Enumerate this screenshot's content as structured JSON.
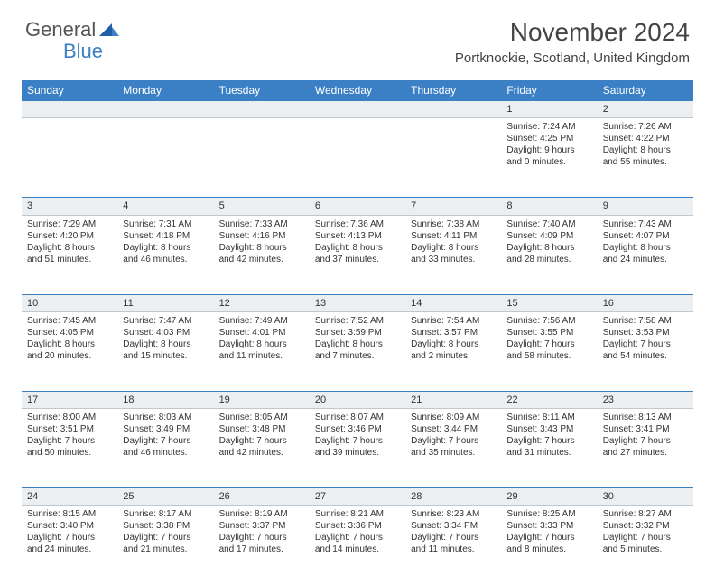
{
  "logo": {
    "general": "General",
    "blue": "Blue"
  },
  "title": "November 2024",
  "location": "Portknockie, Scotland, United Kingdom",
  "colors": {
    "header_bg": "#3b7fc4",
    "header_text": "#ffffff",
    "daynum_bg": "#eceff1",
    "border_top": "#3b7fc4",
    "body_text": "#333333"
  },
  "weekdays": [
    "Sunday",
    "Monday",
    "Tuesday",
    "Wednesday",
    "Thursday",
    "Friday",
    "Saturday"
  ],
  "weeks": [
    {
      "nums": [
        "",
        "",
        "",
        "",
        "",
        "1",
        "2"
      ],
      "cells": [
        null,
        null,
        null,
        null,
        null,
        {
          "sunrise": "Sunrise: 7:24 AM",
          "sunset": "Sunset: 4:25 PM",
          "day1": "Daylight: 9 hours",
          "day2": "and 0 minutes."
        },
        {
          "sunrise": "Sunrise: 7:26 AM",
          "sunset": "Sunset: 4:22 PM",
          "day1": "Daylight: 8 hours",
          "day2": "and 55 minutes."
        }
      ]
    },
    {
      "nums": [
        "3",
        "4",
        "5",
        "6",
        "7",
        "8",
        "9"
      ],
      "cells": [
        {
          "sunrise": "Sunrise: 7:29 AM",
          "sunset": "Sunset: 4:20 PM",
          "day1": "Daylight: 8 hours",
          "day2": "and 51 minutes."
        },
        {
          "sunrise": "Sunrise: 7:31 AM",
          "sunset": "Sunset: 4:18 PM",
          "day1": "Daylight: 8 hours",
          "day2": "and 46 minutes."
        },
        {
          "sunrise": "Sunrise: 7:33 AM",
          "sunset": "Sunset: 4:16 PM",
          "day1": "Daylight: 8 hours",
          "day2": "and 42 minutes."
        },
        {
          "sunrise": "Sunrise: 7:36 AM",
          "sunset": "Sunset: 4:13 PM",
          "day1": "Daylight: 8 hours",
          "day2": "and 37 minutes."
        },
        {
          "sunrise": "Sunrise: 7:38 AM",
          "sunset": "Sunset: 4:11 PM",
          "day1": "Daylight: 8 hours",
          "day2": "and 33 minutes."
        },
        {
          "sunrise": "Sunrise: 7:40 AM",
          "sunset": "Sunset: 4:09 PM",
          "day1": "Daylight: 8 hours",
          "day2": "and 28 minutes."
        },
        {
          "sunrise": "Sunrise: 7:43 AM",
          "sunset": "Sunset: 4:07 PM",
          "day1": "Daylight: 8 hours",
          "day2": "and 24 minutes."
        }
      ]
    },
    {
      "nums": [
        "10",
        "11",
        "12",
        "13",
        "14",
        "15",
        "16"
      ],
      "cells": [
        {
          "sunrise": "Sunrise: 7:45 AM",
          "sunset": "Sunset: 4:05 PM",
          "day1": "Daylight: 8 hours",
          "day2": "and 20 minutes."
        },
        {
          "sunrise": "Sunrise: 7:47 AM",
          "sunset": "Sunset: 4:03 PM",
          "day1": "Daylight: 8 hours",
          "day2": "and 15 minutes."
        },
        {
          "sunrise": "Sunrise: 7:49 AM",
          "sunset": "Sunset: 4:01 PM",
          "day1": "Daylight: 8 hours",
          "day2": "and 11 minutes."
        },
        {
          "sunrise": "Sunrise: 7:52 AM",
          "sunset": "Sunset: 3:59 PM",
          "day1": "Daylight: 8 hours",
          "day2": "and 7 minutes."
        },
        {
          "sunrise": "Sunrise: 7:54 AM",
          "sunset": "Sunset: 3:57 PM",
          "day1": "Daylight: 8 hours",
          "day2": "and 2 minutes."
        },
        {
          "sunrise": "Sunrise: 7:56 AM",
          "sunset": "Sunset: 3:55 PM",
          "day1": "Daylight: 7 hours",
          "day2": "and 58 minutes."
        },
        {
          "sunrise": "Sunrise: 7:58 AM",
          "sunset": "Sunset: 3:53 PM",
          "day1": "Daylight: 7 hours",
          "day2": "and 54 minutes."
        }
      ]
    },
    {
      "nums": [
        "17",
        "18",
        "19",
        "20",
        "21",
        "22",
        "23"
      ],
      "cells": [
        {
          "sunrise": "Sunrise: 8:00 AM",
          "sunset": "Sunset: 3:51 PM",
          "day1": "Daylight: 7 hours",
          "day2": "and 50 minutes."
        },
        {
          "sunrise": "Sunrise: 8:03 AM",
          "sunset": "Sunset: 3:49 PM",
          "day1": "Daylight: 7 hours",
          "day2": "and 46 minutes."
        },
        {
          "sunrise": "Sunrise: 8:05 AM",
          "sunset": "Sunset: 3:48 PM",
          "day1": "Daylight: 7 hours",
          "day2": "and 42 minutes."
        },
        {
          "sunrise": "Sunrise: 8:07 AM",
          "sunset": "Sunset: 3:46 PM",
          "day1": "Daylight: 7 hours",
          "day2": "and 39 minutes."
        },
        {
          "sunrise": "Sunrise: 8:09 AM",
          "sunset": "Sunset: 3:44 PM",
          "day1": "Daylight: 7 hours",
          "day2": "and 35 minutes."
        },
        {
          "sunrise": "Sunrise: 8:11 AM",
          "sunset": "Sunset: 3:43 PM",
          "day1": "Daylight: 7 hours",
          "day2": "and 31 minutes."
        },
        {
          "sunrise": "Sunrise: 8:13 AM",
          "sunset": "Sunset: 3:41 PM",
          "day1": "Daylight: 7 hours",
          "day2": "and 27 minutes."
        }
      ]
    },
    {
      "nums": [
        "24",
        "25",
        "26",
        "27",
        "28",
        "29",
        "30"
      ],
      "cells": [
        {
          "sunrise": "Sunrise: 8:15 AM",
          "sunset": "Sunset: 3:40 PM",
          "day1": "Daylight: 7 hours",
          "day2": "and 24 minutes."
        },
        {
          "sunrise": "Sunrise: 8:17 AM",
          "sunset": "Sunset: 3:38 PM",
          "day1": "Daylight: 7 hours",
          "day2": "and 21 minutes."
        },
        {
          "sunrise": "Sunrise: 8:19 AM",
          "sunset": "Sunset: 3:37 PM",
          "day1": "Daylight: 7 hours",
          "day2": "and 17 minutes."
        },
        {
          "sunrise": "Sunrise: 8:21 AM",
          "sunset": "Sunset: 3:36 PM",
          "day1": "Daylight: 7 hours",
          "day2": "and 14 minutes."
        },
        {
          "sunrise": "Sunrise: 8:23 AM",
          "sunset": "Sunset: 3:34 PM",
          "day1": "Daylight: 7 hours",
          "day2": "and 11 minutes."
        },
        {
          "sunrise": "Sunrise: 8:25 AM",
          "sunset": "Sunset: 3:33 PM",
          "day1": "Daylight: 7 hours",
          "day2": "and 8 minutes."
        },
        {
          "sunrise": "Sunrise: 8:27 AM",
          "sunset": "Sunset: 3:32 PM",
          "day1": "Daylight: 7 hours",
          "day2": "and 5 minutes."
        }
      ]
    }
  ]
}
